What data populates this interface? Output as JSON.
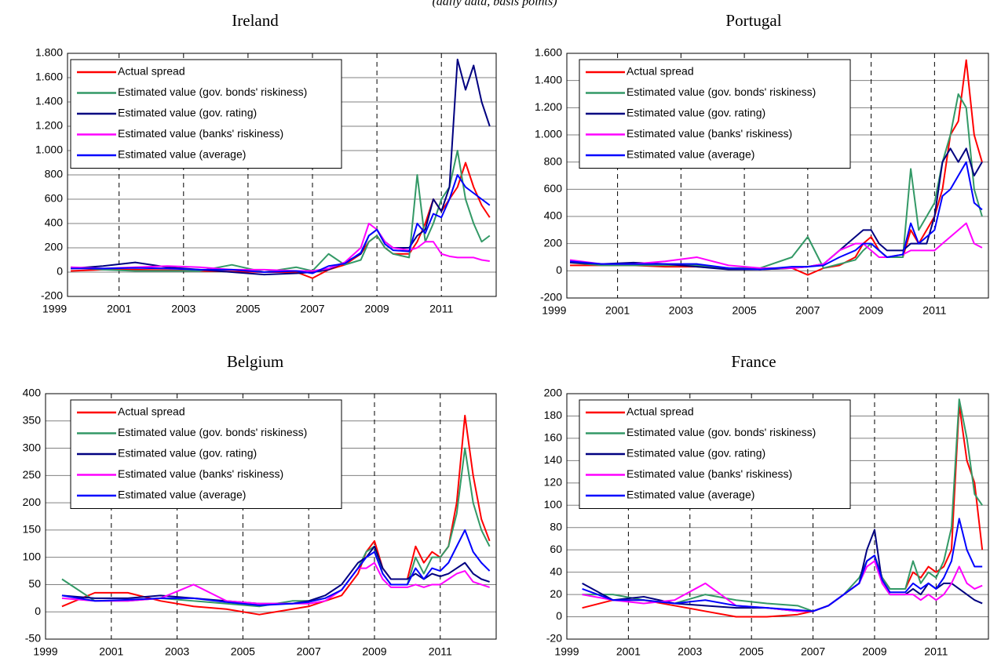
{
  "header": {
    "subtitle": "(daily data, basis points)"
  },
  "chart_data": [
    {
      "type": "line",
      "title": "Ireland",
      "x": [
        1999.5,
        2000.5,
        2001.5,
        2002.5,
        2003.5,
        2004.5,
        2005.5,
        2006.5,
        2007,
        2007.5,
        2008,
        2008.5,
        2008.75,
        2009,
        2009.25,
        2009.5,
        2010,
        2010.25,
        2010.5,
        2010.75,
        2011,
        2011.25,
        2011.5,
        2011.75,
        2012,
        2012.25,
        2012.5
      ],
      "xlim": [
        1999.4,
        2012.7
      ],
      "xticks": [
        1999,
        2001,
        2003,
        2005,
        2007,
        2009,
        2011
      ],
      "ylim": [
        -200,
        1800
      ],
      "yticks": [
        -200,
        0,
        200,
        400,
        600,
        800,
        {
          "value": 1000,
          "label": "1.000"
        },
        {
          "value": 1200,
          "label": "1.200"
        },
        {
          "value": 1400,
          "label": "1.400"
        },
        {
          "value": 1600,
          "label": "1.600"
        },
        {
          "value": 1800,
          "label": "1.800"
        }
      ],
      "series": [
        {
          "name": "Actual spread",
          "color": "#ff0000",
          "values": [
            10,
            20,
            20,
            15,
            10,
            5,
            0,
            0,
            -50,
            20,
            60,
            150,
            250,
            300,
            200,
            150,
            150,
            250,
            400,
            600,
            500,
            600,
            700,
            900,
            700,
            550,
            450
          ]
        },
        {
          "name": "Estimated value (gov. bonds' riskiness)",
          "color": "#339966",
          "values": [
            40,
            20,
            10,
            10,
            10,
            60,
            0,
            40,
            10,
            150,
            60,
            100,
            250,
            300,
            200,
            150,
            120,
            800,
            250,
            400,
            600,
            700,
            1000,
            600,
            400,
            250,
            300
          ]
        },
        {
          "name": "Estimated value (gov. rating)",
          "color": "#000080",
          "values": [
            30,
            50,
            80,
            40,
            20,
            0,
            -20,
            -10,
            0,
            20,
            80,
            150,
            300,
            350,
            250,
            200,
            200,
            300,
            350,
            600,
            500,
            700,
            1750,
            1500,
            1700,
            1400,
            1200
          ]
        },
        {
          "name": "Estimated value (banks' riskiness)",
          "color": "#ff00ff",
          "values": [
            40,
            30,
            40,
            50,
            40,
            20,
            20,
            10,
            10,
            30,
            80,
            200,
            400,
            350,
            250,
            200,
            180,
            200,
            250,
            250,
            150,
            130,
            120,
            120,
            120,
            100,
            90
          ]
        },
        {
          "name": "Estimated value (average)",
          "color": "#0000ff",
          "values": [
            30,
            30,
            35,
            30,
            20,
            20,
            0,
            10,
            -10,
            50,
            70,
            160,
            300,
            350,
            230,
            180,
            170,
            400,
            320,
            480,
            450,
            600,
            800,
            700,
            650,
            600,
            550
          ]
        }
      ]
    },
    {
      "type": "line",
      "title": "Portugal",
      "x": [
        1999.5,
        2000.5,
        2001.5,
        2002.5,
        2003.5,
        2004.5,
        2005.5,
        2006.5,
        2007,
        2007.5,
        2008,
        2008.5,
        2008.75,
        2009,
        2009.25,
        2009.5,
        2010,
        2010.25,
        2010.5,
        2010.75,
        2011,
        2011.25,
        2011.5,
        2011.75,
        2012,
        2012.25,
        2012.5
      ],
      "xlim": [
        1999.4,
        2012.7
      ],
      "xticks": [
        1999,
        2001,
        2003,
        2005,
        2007,
        2009,
        2011
      ],
      "ylim": [
        -200,
        1600
      ],
      "yticks": [
        -200,
        0,
        200,
        400,
        600,
        800,
        {
          "value": 1000,
          "label": "1.000"
        },
        {
          "value": 1200,
          "label": "1.200"
        },
        {
          "value": 1400,
          "label": "1.400"
        },
        {
          "value": 1600,
          "label": "1.600"
        }
      ],
      "series": [
        {
          "name": "Actual spread",
          "color": "#ff0000",
          "values": [
            40,
            40,
            40,
            30,
            30,
            20,
            10,
            20,
            -30,
            20,
            40,
            100,
            200,
            250,
            150,
            100,
            100,
            300,
            200,
            300,
            400,
            600,
            1000,
            1100,
            1550,
            1000,
            800
          ]
        },
        {
          "name": "Estimated value (gov. bonds' riskiness)",
          "color": "#339966",
          "values": [
            60,
            40,
            40,
            40,
            40,
            20,
            20,
            100,
            250,
            20,
            50,
            80,
            150,
            200,
            150,
            100,
            100,
            750,
            300,
            400,
            500,
            800,
            1000,
            1300,
            1200,
            600,
            400
          ]
        },
        {
          "name": "Estimated value (gov. rating)",
          "color": "#000080",
          "values": [
            60,
            50,
            60,
            50,
            30,
            10,
            10,
            20,
            30,
            50,
            150,
            250,
            300,
            300,
            200,
            150,
            150,
            200,
            200,
            200,
            400,
            800,
            900,
            800,
            900,
            700,
            800
          ]
        },
        {
          "name": "Estimated value (banks' riskiness)",
          "color": "#ff00ff",
          "values": [
            80,
            50,
            50,
            70,
            100,
            40,
            20,
            20,
            30,
            50,
            150,
            200,
            200,
            150,
            100,
            100,
            120,
            150,
            150,
            150,
            150,
            200,
            250,
            300,
            350,
            200,
            170
          ]
        },
        {
          "name": "Estimated value (average)",
          "color": "#0000ff",
          "values": [
            70,
            50,
            50,
            50,
            50,
            20,
            10,
            30,
            30,
            40,
            100,
            150,
            200,
            200,
            150,
            100,
            120,
            350,
            200,
            250,
            300,
            550,
            600,
            700,
            800,
            500,
            450
          ]
        }
      ]
    },
    {
      "type": "line",
      "title": "Belgium",
      "x": [
        1999.5,
        2000.5,
        2001.5,
        2002.5,
        2003.5,
        2004.5,
        2005.5,
        2006.5,
        2007,
        2007.5,
        2008,
        2008.5,
        2008.75,
        2009,
        2009.25,
        2009.5,
        2010,
        2010.25,
        2010.5,
        2010.75,
        2011,
        2011.25,
        2011.5,
        2011.75,
        2012,
        2012.25,
        2012.5
      ],
      "xlim": [
        1999,
        2012.7
      ],
      "xticks": [
        1999,
        2001,
        2003,
        2005,
        2007,
        2009,
        2011
      ],
      "ylim": [
        -50,
        400
      ],
      "yticks": [
        -50,
        0,
        50,
        100,
        150,
        200,
        250,
        300,
        350,
        400
      ],
      "series": [
        {
          "name": "Actual spread",
          "color": "#ff0000",
          "values": [
            10,
            35,
            35,
            20,
            10,
            5,
            -5,
            5,
            10,
            20,
            30,
            70,
            110,
            130,
            80,
            60,
            60,
            120,
            90,
            110,
            100,
            120,
            200,
            360,
            250,
            170,
            130
          ]
        },
        {
          "name": "Estimated value (gov. bonds' riskiness)",
          "color": "#339966",
          "values": [
            60,
            20,
            20,
            25,
            20,
            15,
            10,
            20,
            20,
            25,
            40,
            80,
            110,
            120,
            70,
            50,
            50,
            100,
            70,
            100,
            100,
            120,
            180,
            300,
            200,
            150,
            120
          ]
        },
        {
          "name": "Estimated value (gov. rating)",
          "color": "#000080",
          "values": [
            30,
            25,
            25,
            30,
            25,
            20,
            15,
            15,
            20,
            30,
            50,
            90,
            100,
            120,
            80,
            60,
            60,
            70,
            60,
            70,
            65,
            70,
            80,
            90,
            70,
            60,
            55
          ]
        },
        {
          "name": "Estimated value (banks' riskiness)",
          "color": "#ff00ff",
          "values": [
            25,
            20,
            20,
            25,
            50,
            20,
            15,
            15,
            15,
            20,
            40,
            80,
            80,
            90,
            60,
            45,
            45,
            50,
            45,
            50,
            50,
            60,
            70,
            75,
            55,
            50,
            45
          ]
        },
        {
          "name": "Estimated value (average)",
          "color": "#0000ff",
          "values": [
            30,
            20,
            22,
            25,
            25,
            18,
            12,
            15,
            18,
            25,
            40,
            80,
            100,
            110,
            70,
            50,
            50,
            80,
            60,
            80,
            75,
            90,
            120,
            150,
            110,
            90,
            75
          ]
        }
      ]
    },
    {
      "type": "line",
      "title": "France",
      "x": [
        1999.5,
        2000.5,
        2001.5,
        2002.5,
        2003.5,
        2004.5,
        2005.5,
        2006.5,
        2007,
        2007.5,
        2008,
        2008.5,
        2008.75,
        2009,
        2009.25,
        2009.5,
        2010,
        2010.25,
        2010.5,
        2010.75,
        2011,
        2011.25,
        2011.5,
        2011.75,
        2012,
        2012.25,
        2012.5
      ],
      "xlim": [
        1999,
        2012.7
      ],
      "xticks": [
        1999,
        2001,
        2003,
        2005,
        2007,
        2009,
        2011
      ],
      "ylim": [
        -20,
        200
      ],
      "yticks": [
        -20,
        0,
        20,
        40,
        60,
        80,
        100,
        120,
        140,
        160,
        180,
        200
      ],
      "series": [
        {
          "name": "Actual spread",
          "color": "#ff0000",
          "values": [
            8,
            15,
            15,
            10,
            5,
            0,
            0,
            2,
            5,
            10,
            20,
            30,
            50,
            55,
            35,
            25,
            25,
            40,
            35,
            45,
            40,
            45,
            60,
            190,
            140,
            120,
            60
          ]
        },
        {
          "name": "Estimated value (gov. bonds' riskiness)",
          "color": "#339966",
          "values": [
            20,
            20,
            15,
            12,
            20,
            15,
            12,
            10,
            5,
            10,
            20,
            35,
            50,
            55,
            35,
            25,
            25,
            50,
            30,
            40,
            35,
            50,
            80,
            195,
            160,
            110,
            100
          ]
        },
        {
          "name": "Estimated value (gov. rating)",
          "color": "#000080",
          "values": [
            30,
            15,
            18,
            12,
            10,
            8,
            8,
            5,
            5,
            10,
            20,
            30,
            60,
            78,
            30,
            20,
            20,
            25,
            20,
            30,
            25,
            30,
            30,
            25,
            20,
            15,
            12
          ]
        },
        {
          "name": "Estimated value (banks' riskiness)",
          "color": "#ff00ff",
          "values": [
            20,
            15,
            12,
            15,
            30,
            10,
            8,
            5,
            5,
            10,
            20,
            30,
            45,
            50,
            30,
            20,
            20,
            20,
            15,
            20,
            15,
            20,
            30,
            45,
            30,
            25,
            28
          ]
        },
        {
          "name": "Estimated value (average)",
          "color": "#0000ff",
          "values": [
            25,
            15,
            15,
            12,
            15,
            10,
            8,
            6,
            5,
            10,
            20,
            30,
            50,
            55,
            33,
            22,
            22,
            30,
            25,
            30,
            25,
            35,
            50,
            88,
            60,
            45,
            45
          ]
        }
      ]
    }
  ]
}
